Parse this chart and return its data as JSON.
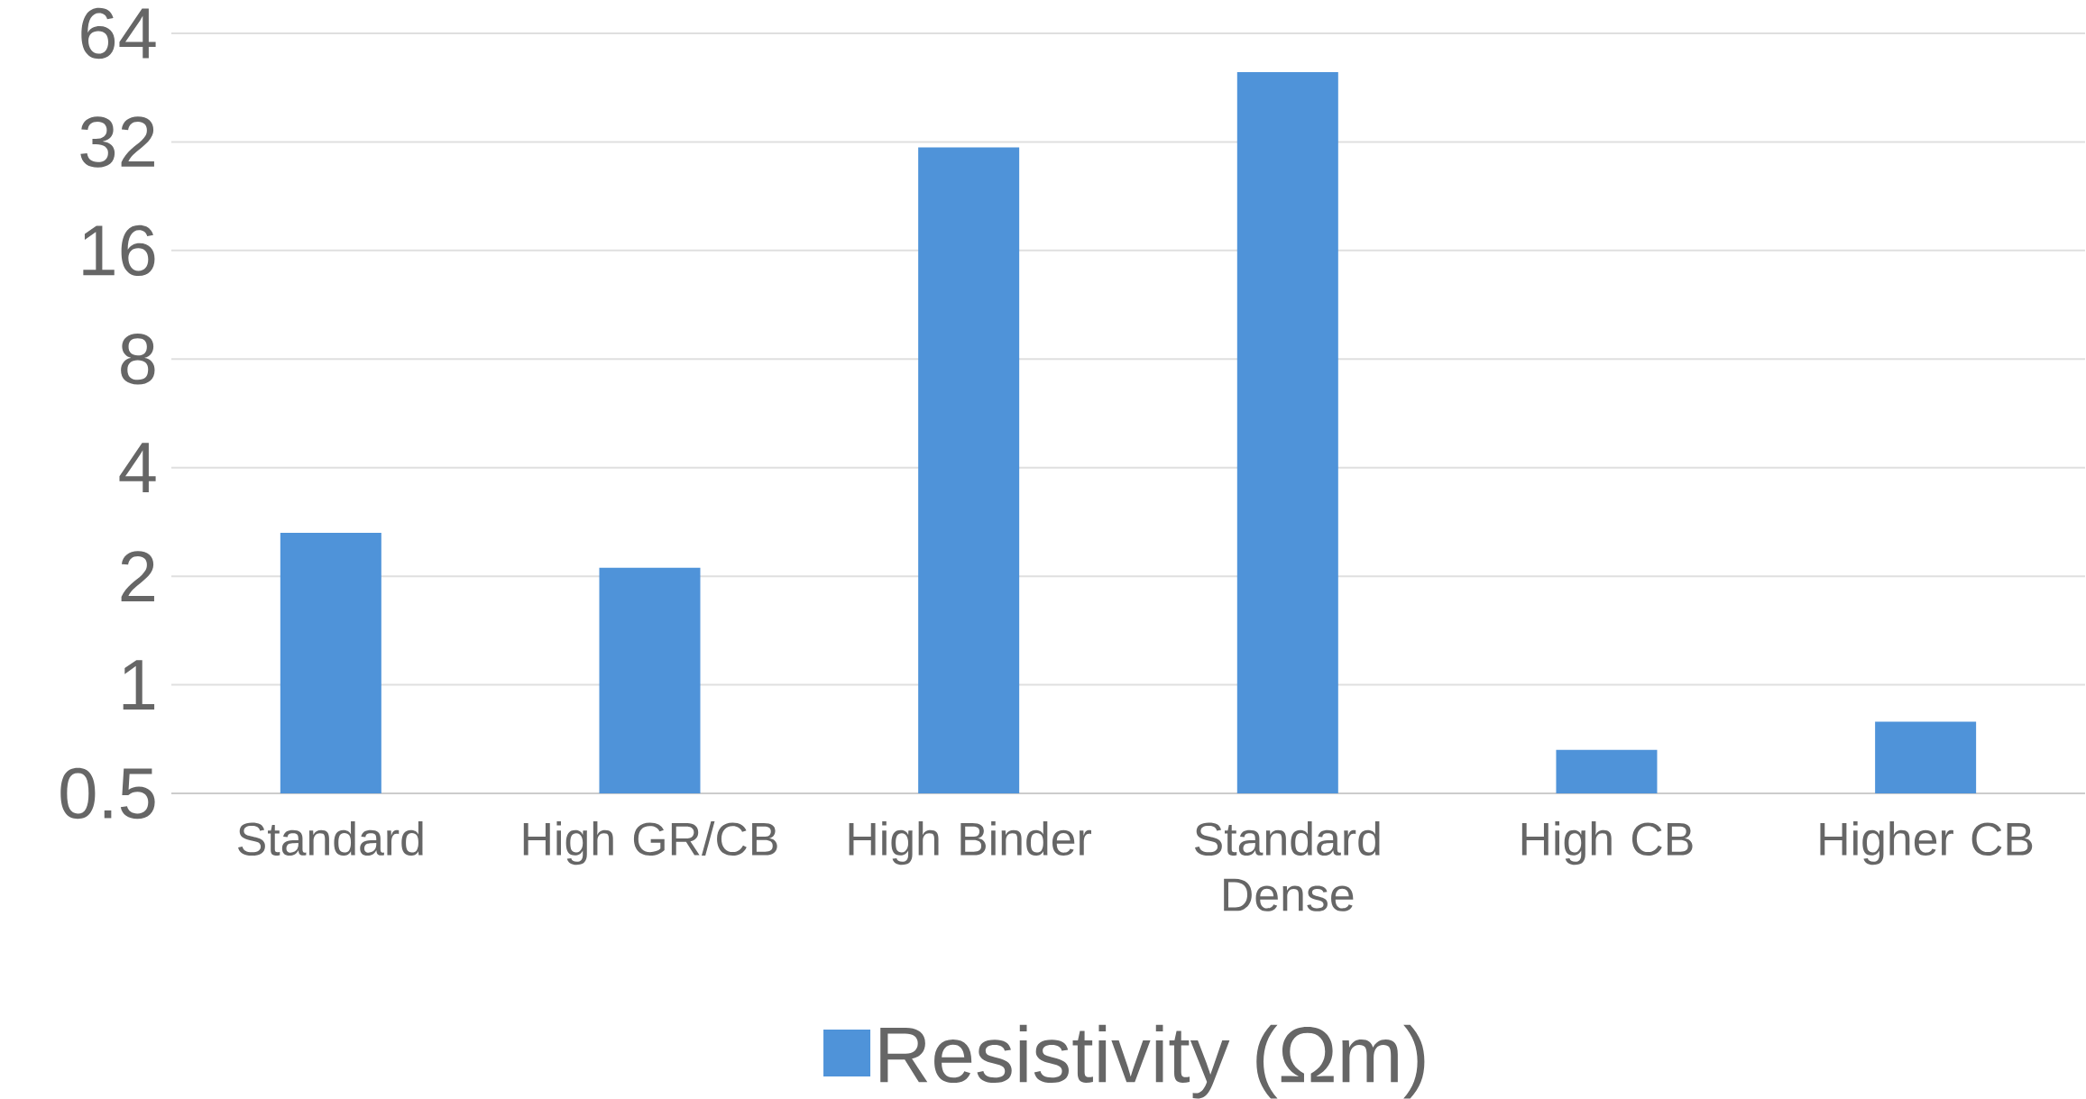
{
  "chart_data": {
    "type": "bar",
    "categories": [
      "Standard",
      "High GR/CB",
      "High Binder",
      "Standard Dense",
      "High CB",
      "Higher CB"
    ],
    "series": [
      {
        "name": "Resistivity (Ωm)",
        "color": "#4f93d9",
        "values": [
          2.64,
          2.11,
          30.9,
          50,
          0.66,
          0.79
        ]
      }
    ],
    "ylim": [
      0.5,
      64
    ],
    "yticks": [
      0.5,
      1,
      2,
      4,
      8,
      16,
      32,
      64
    ],
    "log": "y",
    "grid": "y",
    "legend": "bottom"
  }
}
